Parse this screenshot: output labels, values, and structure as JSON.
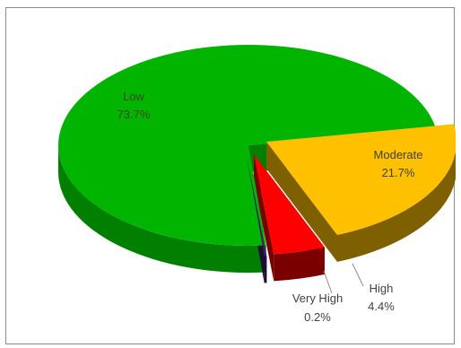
{
  "chart_data": {
    "type": "pie",
    "title": "",
    "slices": [
      {
        "label": "Low",
        "percent_text": "73.7%",
        "value": 73.7,
        "color": "#00b400",
        "side": "#007f00",
        "label_color": "#3d4a1b"
      },
      {
        "label": "Moderate",
        "percent_text": "21.7%",
        "value": 21.7,
        "color": "#ffc000",
        "side": "#7f6000",
        "label_color": "#404040"
      },
      {
        "label": "High",
        "percent_text": "4.4%",
        "value": 4.4,
        "color": "#ff0000",
        "side": "#7a0000",
        "label_color": "#404040"
      },
      {
        "label": "Very High",
        "percent_text": "0.2%",
        "value": 0.2,
        "color": "#3b1f66",
        "side": "#1d0f33",
        "label_color": "#404040"
      }
    ],
    "legend": "none",
    "style": "3d-exploded"
  }
}
